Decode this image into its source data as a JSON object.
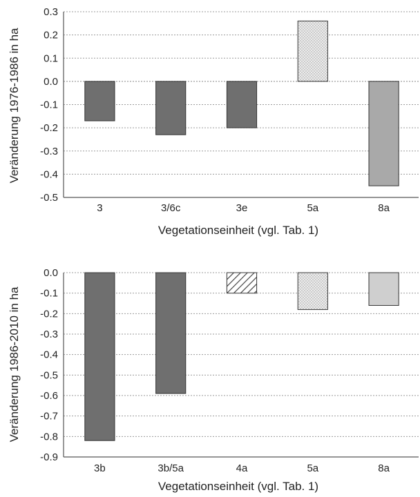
{
  "chart_data": [
    {
      "type": "bar",
      "categories": [
        "3",
        "3/6c",
        "3e",
        "5a",
        "8a"
      ],
      "values": [
        -0.17,
        -0.23,
        -0.2,
        0.26,
        -0.45
      ],
      "fills": [
        "dark",
        "dark",
        "dark",
        "dotted",
        "medium"
      ],
      "ylabel": "Veränderung 1976-1986 in ha",
      "xlabel": "Vegetationseinheit (vgl. Tab. 1)",
      "ylim": [
        -0.5,
        0.3
      ],
      "yticks": [
        "0.3",
        "0.2",
        "0.1",
        "0.0",
        "-0.1",
        "-0.2",
        "-0.3",
        "-0.4",
        "-0.5"
      ],
      "grid": true
    },
    {
      "type": "bar",
      "categories": [
        "3b",
        "3b/5a",
        "4a",
        "5a",
        "8a"
      ],
      "values": [
        -0.82,
        -0.59,
        -0.1,
        -0.18,
        -0.16
      ],
      "fills": [
        "dark",
        "dark",
        "hatched",
        "dotted",
        "light"
      ],
      "ylabel": "Veränderung 1986-2010 in ha",
      "xlabel": "Vegetationseinheit (vgl. Tab. 1)",
      "ylim": [
        -0.9,
        0.0
      ],
      "yticks": [
        "0.0",
        "-0.1",
        "-0.2",
        "-0.3",
        "-0.4",
        "-0.5",
        "-0.6",
        "-0.7",
        "-0.8",
        "-0.9"
      ],
      "grid": true
    }
  ],
  "colors": {
    "dark": "#6f6f6f",
    "medium": "#a9a9a9",
    "light": "#cfcfcf",
    "dotted_bg": "#ececec",
    "dotted_dot": "#9a9a9a",
    "hatch_line": "#444444",
    "bar_stroke": "#333333"
  }
}
